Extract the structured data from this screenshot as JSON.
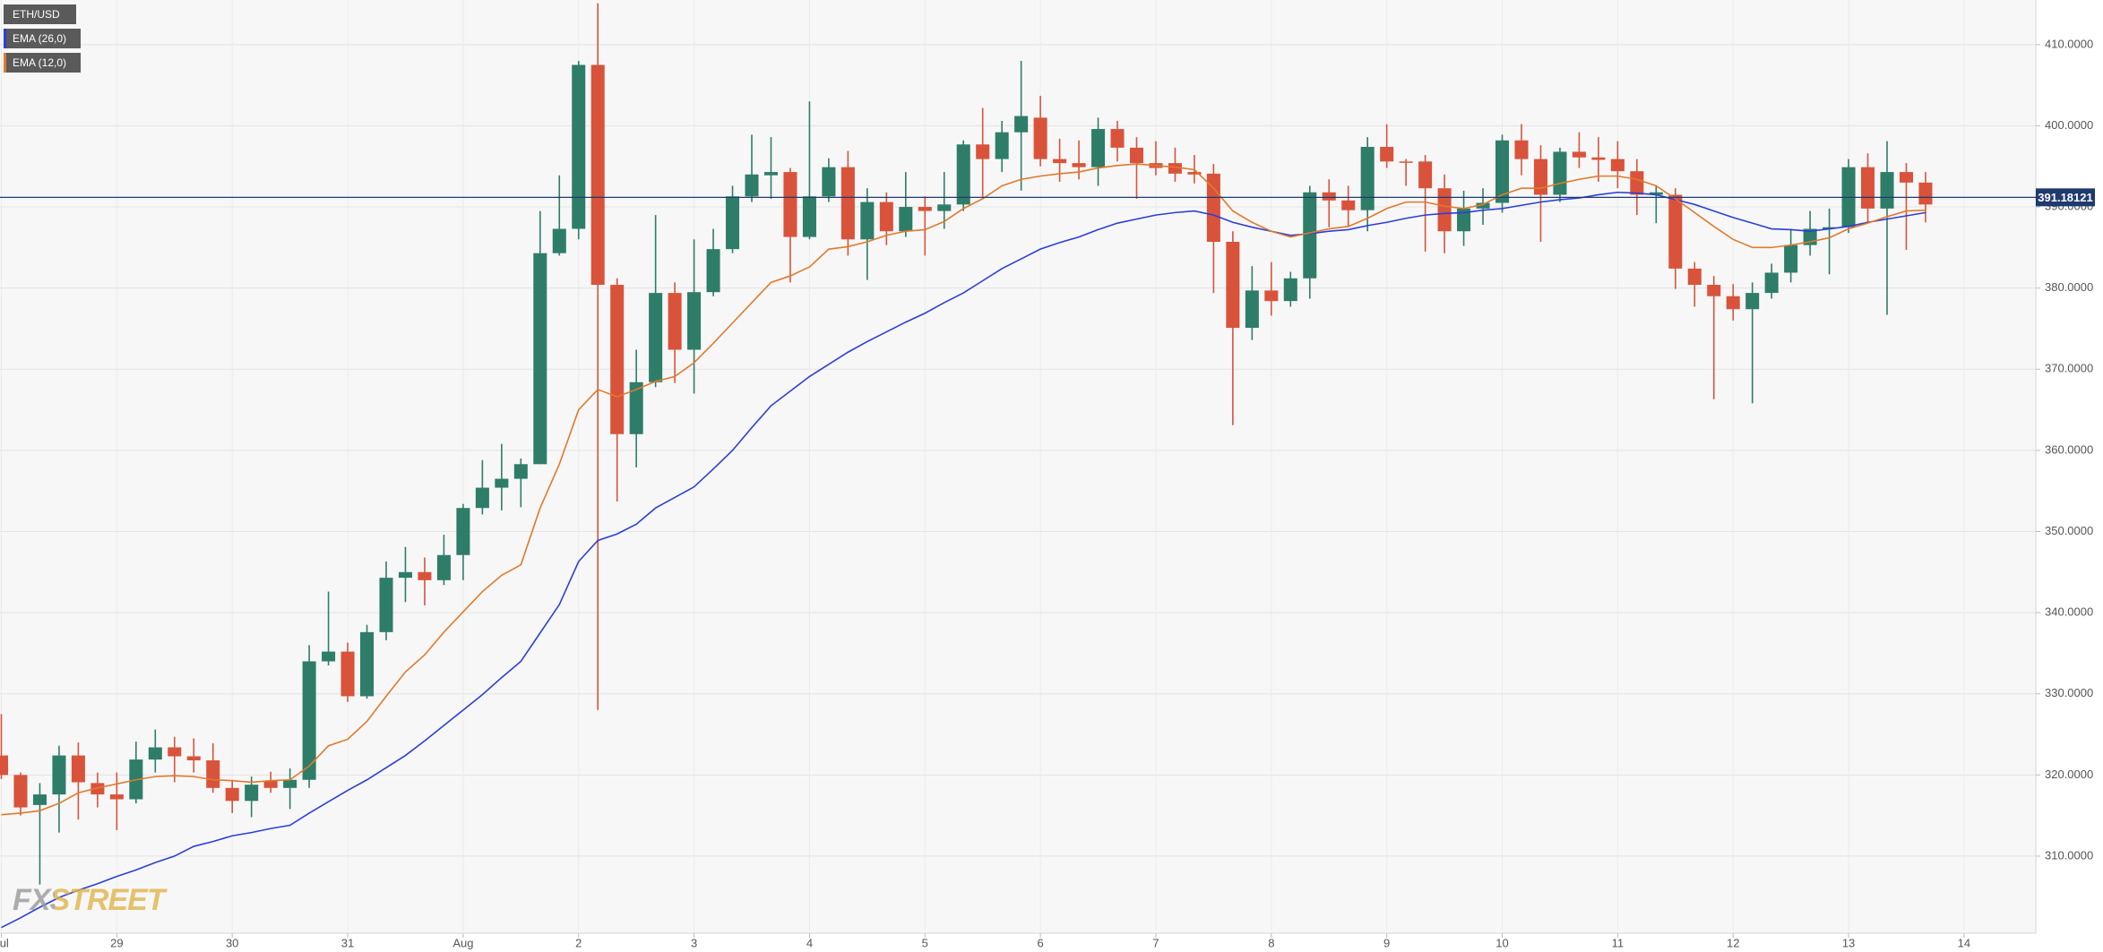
{
  "chart_data": {
    "type": "candlestick",
    "watermark": "FXSTREET",
    "grid": true,
    "xlim": [
      -0.07,
      105.73
    ],
    "xticks": [
      {
        "value": 0,
        "label": "Jul"
      },
      {
        "value": 6,
        "label": "29"
      },
      {
        "value": 12,
        "label": "30"
      },
      {
        "value": 18,
        "label": "31"
      },
      {
        "value": 24,
        "label": "Aug"
      },
      {
        "value": 30,
        "label": "2"
      },
      {
        "value": 36,
        "label": "3"
      },
      {
        "value": 42,
        "label": "4"
      },
      {
        "value": 48,
        "label": "5"
      },
      {
        "value": 54,
        "label": "6"
      },
      {
        "value": 60,
        "label": "7"
      },
      {
        "value": 66,
        "label": "8"
      },
      {
        "value": 72,
        "label": "9"
      },
      {
        "value": 78,
        "label": "10"
      },
      {
        "value": 84,
        "label": "11"
      },
      {
        "value": 90,
        "label": "12"
      },
      {
        "value": 96,
        "label": "13"
      },
      {
        "value": 102,
        "label": "14"
      }
    ],
    "ylim": [
      300.5,
      415.5
    ],
    "yticks": [
      {
        "value": 310,
        "label": "310.0000"
      },
      {
        "value": 320,
        "label": "320.0000"
      },
      {
        "value": 330,
        "label": "330.0000"
      },
      {
        "value": 340,
        "label": "340.0000"
      },
      {
        "value": 350,
        "label": "350.0000"
      },
      {
        "value": 360,
        "label": "360.0000"
      },
      {
        "value": 370,
        "label": "370.0000"
      },
      {
        "value": 380,
        "label": "380.0000"
      },
      {
        "value": 390,
        "label": "390.0000"
      },
      {
        "value": 400,
        "label": "400.0000"
      },
      {
        "value": 410,
        "label": "410.0000"
      }
    ],
    "current_price": 391.18121,
    "current_price_color": "#1f3a6e",
    "series": [
      {
        "name": "ETH/USD",
        "up_color": "#2e7d69",
        "down_color": "#d9533b",
        "open": [
          322.4,
          320,
          316.3,
          317.6,
          322.4,
          319,
          317.6,
          317,
          321.9,
          323.4,
          322.3,
          321.8,
          318.4,
          316.8,
          319.3,
          318.4,
          319.4,
          334,
          335.2,
          329.7,
          337.6,
          344.3,
          345,
          344,
          347.1,
          352.9,
          355.4,
          356.5,
          358.3,
          384.3,
          387.3,
          407.5,
          380.4,
          362,
          368.4,
          379.4,
          372.4,
          379.5,
          384.8,
          391.3,
          393.9,
          394.3,
          386.3,
          391.3,
          394.9,
          386,
          390.6,
          387,
          390,
          389.5,
          390.3,
          397.7,
          395.9,
          399.2,
          401,
          395.9,
          395.4,
          394.9,
          399.6,
          397.3,
          395.4,
          395.4,
          394.3,
          394.1,
          385.7,
          375.1,
          379.7,
          378.4,
          381.2,
          391.8,
          390.8,
          389.6,
          397.4,
          395.6,
          395.6,
          392.3,
          387,
          389.8,
          390.5,
          398.2,
          395.9,
          391.5,
          396.8,
          396.1,
          395.9,
          394.4,
          391.5,
          391.5,
          382.4,
          380.4,
          379,
          377.4,
          379.4,
          381.9,
          385.3,
          387.3,
          387.5,
          394.9,
          389.8,
          394.3,
          393
        ],
        "high": [
          327.5,
          320.3,
          319,
          323.6,
          324,
          320.3,
          320.3,
          324.1,
          325.6,
          324.7,
          324.5,
          323.9,
          319.4,
          319.8,
          320.4,
          320.8,
          336,
          342.6,
          336.3,
          338.5,
          346.3,
          348.1,
          346.8,
          349.6,
          353.4,
          358.8,
          360.8,
          359,
          389.5,
          393.9,
          408,
          415.1,
          381.2,
          372.4,
          389,
          380.7,
          386,
          387.3,
          392.6,
          398.9,
          398.6,
          394.8,
          403,
          396,
          396.9,
          392.3,
          391.8,
          394.3,
          391.3,
          394.3,
          398.2,
          402.2,
          400.6,
          408,
          403.7,
          398.4,
          398.2,
          401,
          400.6,
          398.6,
          398.1,
          397.3,
          396.4,
          395.3,
          387,
          382.7,
          383.2,
          382,
          392.6,
          393.4,
          392.6,
          398.6,
          400.2,
          395.9,
          396.4,
          394,
          392,
          392.3,
          398.9,
          400.2,
          397.6,
          397.3,
          399.2,
          398.6,
          398.1,
          395.9,
          392.6,
          392.3,
          383.2,
          381.5,
          380.5,
          380.7,
          383,
          387.3,
          389.5,
          389.8,
          395.9,
          396.6,
          398.1,
          395.4,
          394.3
        ],
        "low": [
          319.5,
          315,
          306.5,
          312.9,
          314.5,
          316,
          313.2,
          316.5,
          320.3,
          319.1,
          320.3,
          317.8,
          315.3,
          314.8,
          317.8,
          315.8,
          318.4,
          333.5,
          329,
          329.4,
          336.6,
          341.3,
          340.9,
          343.4,
          344,
          352.1,
          352.6,
          353,
          358.3,
          384,
          386,
          328,
          353.7,
          357.9,
          367.8,
          368.3,
          367,
          379,
          384.3,
          390.6,
          391,
          380.7,
          386,
          390.6,
          384,
          381,
          385.3,
          386.3,
          384,
          387.3,
          389.5,
          391,
          394.3,
          392,
          395,
          393.1,
          393.4,
          392.6,
          395.6,
          391,
          393.9,
          393.1,
          392.9,
          379.4,
          363.1,
          373.6,
          376.6,
          377.7,
          378.7,
          387.5,
          387.5,
          387,
          394.8,
          392.6,
          384.5,
          384.3,
          385.2,
          387.8,
          389.3,
          393.9,
          385.7,
          390.6,
          394.8,
          393.1,
          392.3,
          389,
          388,
          379.9,
          377.7,
          366.3,
          376,
          365.8,
          378.7,
          380.7,
          384,
          381.7,
          386.8,
          388.1,
          376.7,
          384.7,
          388.1
        ],
        "close": [
          320,
          316,
          317.6,
          322.4,
          319.1,
          317.6,
          317,
          321.9,
          323.4,
          322.3,
          321.8,
          318.4,
          316.8,
          318.8,
          318.4,
          319.4,
          334,
          335.2,
          329.7,
          337.6,
          344.3,
          345,
          344,
          347.1,
          352.9,
          355.4,
          356.5,
          358.3,
          384.3,
          387.3,
          407.5,
          380.4,
          362,
          368.4,
          379.4,
          372.4,
          379.5,
          384.8,
          391.3,
          394,
          394.3,
          386.3,
          391.3,
          394.9,
          386,
          390.6,
          387,
          390,
          389.5,
          390.3,
          397.7,
          395.9,
          399.2,
          401.2,
          395.9,
          395.4,
          394.9,
          399.6,
          397.3,
          395.4,
          394.8,
          394.1,
          394,
          385.7,
          375.1,
          379.7,
          378.4,
          381.2,
          391.8,
          390.8,
          389.6,
          397.4,
          395.6,
          395.5,
          392.3,
          387,
          389.8,
          390.5,
          398.2,
          395.9,
          391.5,
          396.8,
          396.1,
          395.8,
          394.4,
          391.5,
          391.8,
          382.4,
          380.4,
          379,
          377.4,
          379.4,
          381.9,
          385.3,
          387.3,
          387.5,
          394.9,
          389.8,
          394.3,
          393,
          390.3
        ]
      },
      {
        "name": "EMA (26,0)",
        "color": "#2b3fd6",
        "values": [
          301.2,
          302.4,
          303.7,
          304.9,
          305.8,
          306.6,
          307.5,
          308.3,
          309.2,
          310,
          311.2,
          311.8,
          312.5,
          312.9,
          313.4,
          313.8,
          315.3,
          316.7,
          318.1,
          319.4,
          320.9,
          322.4,
          324.2,
          326.1,
          328,
          329.9,
          332,
          334,
          337.5,
          341,
          346.3,
          348.9,
          349.7,
          350.9,
          352.9,
          354.2,
          355.5,
          357.7,
          360,
          362.8,
          365.5,
          367.3,
          369.1,
          370.6,
          372.1,
          373.4,
          374.6,
          375.8,
          376.9,
          378.2,
          379.4,
          380.9,
          382.4,
          383.6,
          384.8,
          385.6,
          386.3,
          387.2,
          388,
          388.5,
          389,
          389.3,
          389.5,
          389,
          388.1,
          387.5,
          387,
          386.5,
          386.7,
          387,
          387.2,
          387.7,
          388.1,
          388.6,
          389,
          389.2,
          389.3,
          389.6,
          389.8,
          390.2,
          390.6,
          390.9,
          391.1,
          391.5,
          391.8,
          391.7,
          391.5,
          390.9,
          390.3,
          389.5,
          388.7,
          388,
          387.3,
          387.2,
          387,
          387.3,
          387.6,
          388.1,
          388.5,
          388.9,
          389.3
        ]
      },
      {
        "name": "EMA (12,0)",
        "color": "#e07a2c",
        "values": [
          315.1,
          315.3,
          315.6,
          316.5,
          317.8,
          318.4,
          318.9,
          319.4,
          319.8,
          319.9,
          319.8,
          319.4,
          319.3,
          319.1,
          319.3,
          319.4,
          321.1,
          323.6,
          324.4,
          326.6,
          329.7,
          332.7,
          334.8,
          337.6,
          340.1,
          342.6,
          344.6,
          345.9,
          352.9,
          358.3,
          365,
          367.5,
          366.6,
          367.5,
          368.5,
          369.1,
          370.8,
          373.2,
          375.7,
          378.2,
          380.7,
          381.5,
          382.6,
          384.8,
          385.1,
          385.7,
          386.5,
          387,
          387.2,
          388.2,
          389.8,
          391,
          392.6,
          393.4,
          393.8,
          394.1,
          394.3,
          394.8,
          395.1,
          395.3,
          395.1,
          394.9,
          394.6,
          392.3,
          389.5,
          388.1,
          387,
          386.3,
          386.8,
          387.3,
          387.6,
          388.6,
          389.8,
          390.6,
          390.6,
          390.1,
          389.8,
          390.3,
          391.5,
          392.3,
          392.3,
          392.9,
          393.4,
          393.8,
          393.8,
          393.4,
          392.6,
          391,
          389.3,
          387.6,
          386,
          385,
          385,
          385.3,
          385.7,
          386.2,
          387.3,
          388,
          388.8,
          389.5,
          389.6
        ]
      }
    ]
  }
}
